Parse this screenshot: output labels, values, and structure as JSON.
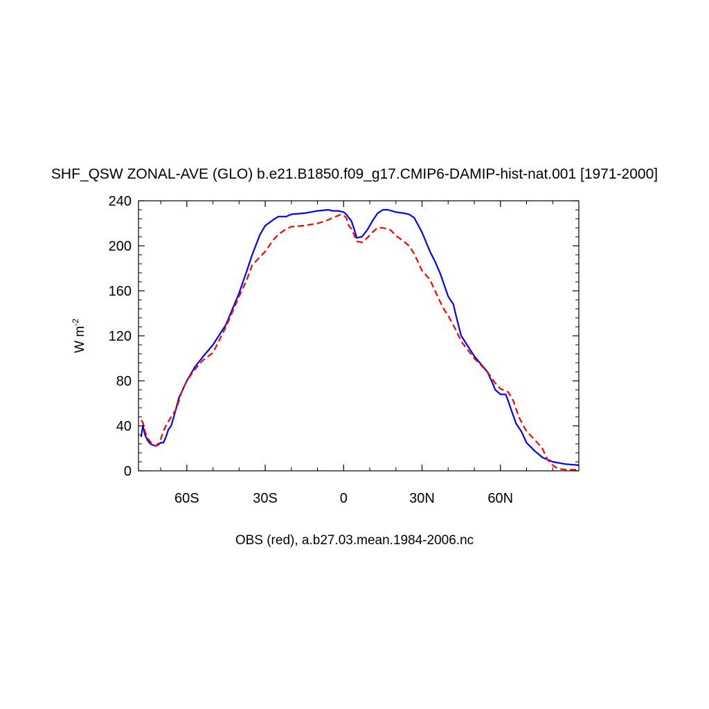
{
  "chart_data": {
    "type": "line",
    "title": "SHF_QSW ZONAL-AVE (GLO) b.e21.B1850.f09_g17.CMIP6-DAMIP-hist-nat.001 [1971-2000]",
    "xlabel": "OBS (red), a.b27.03.mean.1984-2006.nc",
    "ylabel_base": "W m",
    "ylabel_exponent": "-2",
    "xlim": [
      -78.5,
      90
    ],
    "ylim": [
      0,
      240
    ],
    "y_ticks": [
      0,
      40,
      80,
      120,
      160,
      200,
      240
    ],
    "x_ticks": [
      {
        "value": -60,
        "label": "60S"
      },
      {
        "value": -30,
        "label": "30S"
      },
      {
        "value": 0,
        "label": "0"
      },
      {
        "value": 30,
        "label": "30N"
      },
      {
        "value": 60,
        "label": "60N"
      }
    ],
    "series": [
      {
        "color": "#0000ff",
        "dash": "solid",
        "x": [
          -77.5,
          -76.8,
          -76,
          -75,
          -74,
          -73,
          -72,
          -71,
          -70,
          -69,
          -68,
          -67,
          -66,
          -65,
          -63,
          -60,
          -57,
          -54,
          -50,
          -45,
          -40,
          -37,
          -35,
          -32,
          -30,
          -27,
          -25,
          -22,
          -20,
          -15,
          -10,
          -6,
          -4,
          -2,
          0,
          1,
          3,
          4,
          5,
          7,
          9,
          11,
          13,
          15,
          17,
          20,
          23,
          25,
          27,
          30,
          33,
          35,
          37,
          40,
          42,
          43,
          45,
          50,
          55,
          57,
          58,
          60,
          62,
          63,
          64,
          66,
          68,
          70,
          73,
          76,
          80,
          85,
          90
        ],
        "y": [
          30,
          40,
          32,
          27,
          24,
          23,
          22,
          23,
          25,
          25,
          30,
          37,
          40,
          48,
          65,
          80,
          92,
          101,
          112,
          130,
          158,
          178,
          192,
          210,
          218,
          223,
          226,
          226,
          228,
          229,
          231,
          232,
          231,
          231,
          230,
          228,
          222,
          215,
          207,
          208,
          214,
          222,
          229,
          232,
          232,
          230,
          229,
          228,
          225,
          212,
          195,
          186,
          175,
          155,
          148,
          138,
          120,
          102,
          88,
          78,
          72,
          68,
          68,
          62,
          55,
          42,
          35,
          25,
          18,
          12,
          8,
          6,
          5
        ]
      },
      {
        "color": "#ff0000",
        "dash": "dashed",
        "x": [
          -77.5,
          -76.8,
          -76,
          -75,
          -74,
          -72,
          -71,
          -70,
          -69,
          -68,
          -66,
          -64,
          -62,
          -60,
          -57,
          -54,
          -50,
          -45,
          -40,
          -37,
          -35,
          -32,
          -30,
          -27,
          -25,
          -22,
          -20,
          -15,
          -10,
          -7,
          -5,
          -3,
          -1,
          0,
          1,
          2,
          3,
          4,
          5,
          7,
          9,
          11,
          12,
          13,
          15,
          18,
          20,
          23,
          25,
          27,
          30,
          33,
          35,
          38,
          40,
          43,
          45,
          50,
          55,
          58,
          60,
          63,
          65,
          67,
          70,
          73,
          76,
          78,
          80,
          82,
          85,
          90
        ],
        "y": [
          45,
          43,
          35,
          29,
          26,
          22,
          24,
          28,
          35,
          40,
          48,
          55,
          70,
          80,
          90,
          98,
          105,
          128,
          155,
          170,
          183,
          190,
          195,
          205,
          210,
          215,
          217,
          218,
          220,
          222,
          224,
          226,
          228,
          227,
          225,
          218,
          215,
          210,
          204,
          203,
          207,
          212,
          214,
          216,
          216,
          214,
          209,
          204,
          200,
          193,
          178,
          170,
          160,
          145,
          138,
          125,
          115,
          100,
          88,
          78,
          73,
          70,
          62,
          48,
          35,
          28,
          20,
          10,
          5,
          2,
          1,
          1
        ]
      }
    ]
  }
}
